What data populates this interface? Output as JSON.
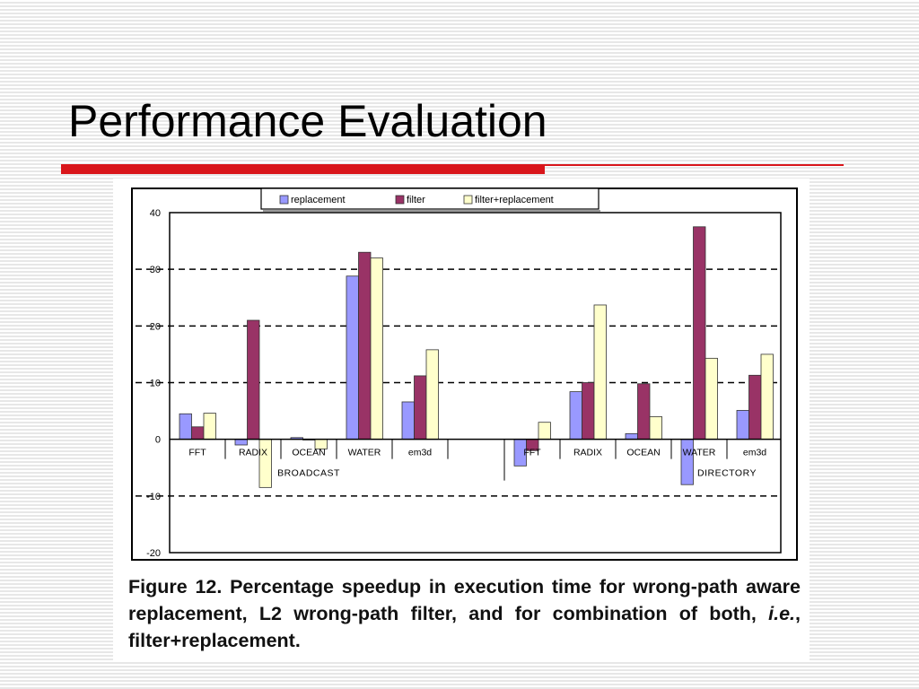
{
  "slide": {
    "title": "Performance Evaluation"
  },
  "caption": {
    "prefix": "Figure 12. Percentage speedup in execution time for wrong-path aware replacement, L2 wrong-path filter, and for combination of both, ",
    "emphasis": "i.e.",
    "suffix": ", filter+replacement."
  },
  "colors": {
    "accent_red": "#d9161b",
    "replacement": "#9999ff",
    "filter": "#993366",
    "filter_replacement": "#ffffcc"
  },
  "chart_data": {
    "type": "bar",
    "ylim": [
      -20,
      40
    ],
    "yticks": [
      -20,
      -10,
      0,
      10,
      20,
      30,
      40
    ],
    "grid": "dashed horizontal at 30, 20, 10 and -10",
    "legend_position": "top",
    "categories": [
      "FFT",
      "RADIX",
      "OCEAN",
      "WATER",
      "em3d",
      "FFT",
      "RADIX",
      "OCEAN",
      "WATER",
      "em3d"
    ],
    "groups": [
      {
        "label": "BROADCAST",
        "categories": [
          "FFT",
          "RADIX",
          "OCEAN",
          "WATER",
          "em3d"
        ]
      },
      {
        "label": "DIRECTORY",
        "categories": [
          "FFT",
          "RADIX",
          "OCEAN",
          "WATER",
          "em3d"
        ]
      }
    ],
    "series": [
      {
        "name": "replacement",
        "color": "#9999ff",
        "values": [
          4.5,
          -1,
          0.3,
          28.8,
          6.6,
          -4.7,
          8.4,
          1,
          -8,
          5.1
        ]
      },
      {
        "name": "filter",
        "color": "#993366",
        "values": [
          2.2,
          21,
          0,
          33,
          11.2,
          -2,
          10,
          9.8,
          37.5,
          11.3
        ]
      },
      {
        "name": "filter+replacement",
        "color": "#ffffcc",
        "values": [
          4.6,
          -8.5,
          -1.7,
          32,
          15.8,
          3,
          23.7,
          4,
          14.3,
          15
        ]
      }
    ]
  }
}
